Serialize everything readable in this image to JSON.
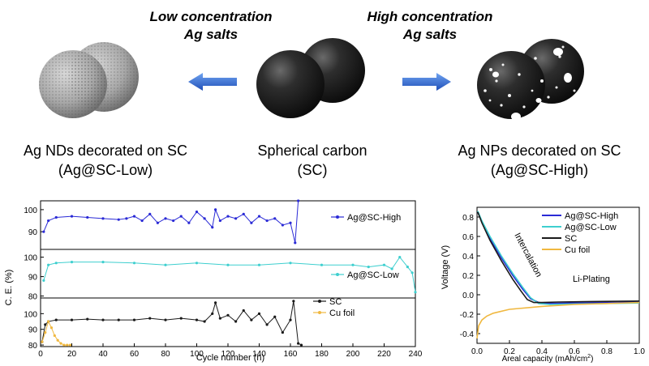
{
  "header": {
    "low": {
      "line1": "Low concentration",
      "line2": "Ag salts"
    },
    "high": {
      "line1": "High concentration",
      "line2": "Ag salts"
    }
  },
  "materials": {
    "left": {
      "line1": "Ag NDs decorated on SC",
      "line2": "(Ag@SC-Low)"
    },
    "center": {
      "line1": "Spherical carbon",
      "line2": "(SC)"
    },
    "right": {
      "line1": "Ag NPs decorated on SC",
      "line2": "(Ag@SC-High)"
    }
  },
  "colors": {
    "high": "#2a2ad6",
    "low": "#3ecfcf",
    "sc": "#1a1a1a",
    "cu": "#f0b840",
    "arrow": "#2f6fd6"
  },
  "chart_data": [
    {
      "type": "scatter",
      "ylabel": "C. E. (%)",
      "xlabel": "Cycle number (n)",
      "xlim": [
        0,
        240
      ],
      "x_ticks": [
        "0",
        "20",
        "40",
        "60",
        "80",
        "100",
        "120",
        "140",
        "160",
        "180",
        "200",
        "220",
        "240"
      ],
      "panels": [
        {
          "y_ticks": [
            "90",
            "100"
          ],
          "ylim": [
            82,
            104
          ],
          "series": [
            {
              "name": "Ag@SC-High",
              "color": "#2a2ad6",
              "x": [
                2,
                5,
                10,
                20,
                30,
                40,
                50,
                55,
                60,
                65,
                70,
                75,
                80,
                85,
                90,
                95,
                100,
                105,
                110,
                112,
                115,
                120,
                125,
                130,
                135,
                140,
                145,
                150,
                155,
                160,
                163,
                165
              ],
              "y": [
                90,
                95,
                96.5,
                97,
                96.5,
                96,
                95.5,
                96,
                97,
                95,
                98,
                94,
                96,
                95,
                97,
                94,
                99,
                96,
                92,
                100,
                95,
                97,
                96,
                98,
                94,
                97,
                95,
                96,
                93,
                94,
                85,
                104
              ]
            }
          ]
        },
        {
          "y_ticks": [
            "80",
            "90",
            "100"
          ],
          "ylim": [
            79,
            104
          ],
          "series": [
            {
              "name": "Ag@SC-Low",
              "color": "#3ecfcf",
              "x": [
                2,
                5,
                10,
                20,
                40,
                60,
                80,
                100,
                120,
                140,
                160,
                180,
                200,
                210,
                220,
                225,
                230,
                235,
                238,
                240
              ],
              "y": [
                88,
                96,
                97,
                97.5,
                97.5,
                97,
                96,
                97,
                96,
                96,
                97,
                96,
                96,
                95,
                96,
                94,
                100,
                95,
                92,
                82
              ]
            }
          ]
        },
        {
          "y_ticks": [
            "80",
            "90",
            "100"
          ],
          "ylim": [
            79,
            110
          ],
          "series": [
            {
              "name": "SC",
              "color": "#1a1a1a",
              "x": [
                1,
                3,
                5,
                10,
                20,
                30,
                40,
                50,
                60,
                70,
                80,
                90,
                100,
                105,
                110,
                112,
                115,
                120,
                125,
                130,
                135,
                140,
                145,
                150,
                155,
                160,
                162,
                165,
                167
              ],
              "y": [
                82,
                93,
                95,
                96,
                96,
                96.5,
                96,
                96,
                96,
                97,
                96,
                97,
                96,
                95,
                100,
                107,
                97,
                99,
                95,
                102,
                96,
                100,
                93,
                98,
                88,
                96,
                108,
                81,
                80
              ]
            },
            {
              "name": "Cu foil",
              "color": "#f0b840",
              "x": [
                1,
                3,
                5,
                7,
                9,
                11,
                13,
                15,
                17,
                19
              ],
              "y": [
                82,
                88,
                95,
                91,
                86,
                83,
                81,
                80,
                80,
                80
              ]
            }
          ]
        }
      ]
    },
    {
      "type": "line",
      "ylabel": "Voltage (V)",
      "xlabel": "Areal capacity (mAh/cm",
      "xlabel_sup": "2",
      "xlabel_close": ")",
      "xlim": [
        0,
        1.0
      ],
      "ylim": [
        -0.5,
        0.9
      ],
      "x_ticks": [
        "0.0",
        "0.2",
        "0.4",
        "0.6",
        "0.8",
        "1.0"
      ],
      "y_ticks": [
        "0.8",
        "0.6",
        "0.4",
        "0.2",
        "0.0",
        "-0.2",
        "-0.4"
      ],
      "annotations": [
        {
          "text": "Intercalation"
        },
        {
          "text": "Li-Plating"
        }
      ],
      "series": [
        {
          "name": "Ag@SC-High",
          "color": "#2a2ad6",
          "x": [
            0.005,
            0.03,
            0.08,
            0.15,
            0.22,
            0.28,
            0.33,
            0.38,
            0.45,
            0.6,
            0.8,
            1.0
          ],
          "y": [
            0.85,
            0.75,
            0.58,
            0.38,
            0.2,
            0.06,
            -0.04,
            -0.08,
            -0.09,
            -0.085,
            -0.08,
            -0.075
          ]
        },
        {
          "name": "Ag@SC-Low",
          "color": "#3ecfcf",
          "x": [
            0.005,
            0.03,
            0.08,
            0.15,
            0.22,
            0.28,
            0.33,
            0.38,
            0.45,
            0.6,
            0.8,
            1.0
          ],
          "y": [
            0.86,
            0.76,
            0.6,
            0.4,
            0.22,
            0.08,
            -0.03,
            -0.09,
            -0.1,
            -0.095,
            -0.09,
            -0.085
          ]
        },
        {
          "name": "SC",
          "color": "#1a1a1a",
          "x": [
            0.005,
            0.03,
            0.08,
            0.15,
            0.22,
            0.27,
            0.31,
            0.35,
            0.4,
            0.5,
            0.7,
            1.0
          ],
          "y": [
            0.85,
            0.74,
            0.56,
            0.35,
            0.16,
            0.04,
            -0.05,
            -0.08,
            -0.08,
            -0.075,
            -0.07,
            -0.065
          ]
        },
        {
          "name": "Cu foil",
          "color": "#f0b840",
          "x": [
            0.0,
            0.01,
            0.03,
            0.06,
            0.1,
            0.2,
            0.4,
            0.6,
            0.8,
            1.0
          ],
          "y": [
            -0.45,
            -0.32,
            -0.26,
            -0.22,
            -0.19,
            -0.15,
            -0.12,
            -0.1,
            -0.09,
            -0.08
          ]
        }
      ]
    }
  ]
}
